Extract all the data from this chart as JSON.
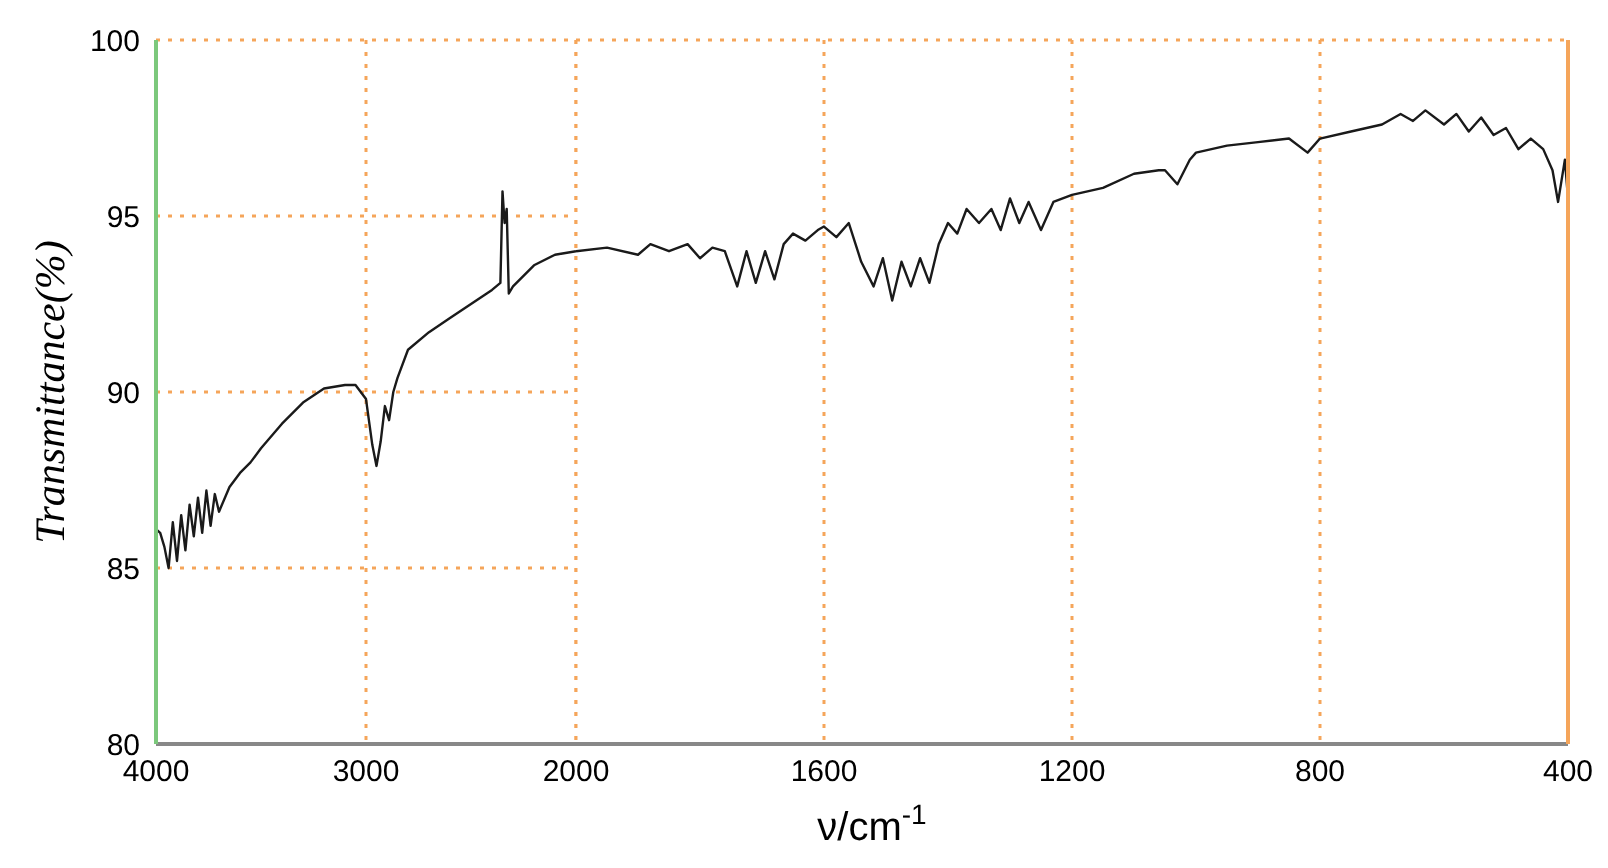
{
  "chart_data": [
    {
      "type": "line",
      "ylabel": "Transmittance(%)",
      "x": [
        4000,
        3980,
        3960,
        3940,
        3920,
        3900,
        3880,
        3860,
        3840,
        3820,
        3800,
        3780,
        3760,
        3740,
        3720,
        3700,
        3650,
        3600,
        3550,
        3500,
        3400,
        3300,
        3200,
        3100,
        3050,
        3000,
        2970,
        2950,
        2930,
        2910,
        2890,
        2870,
        2850,
        2800,
        2700,
        2600,
        2500,
        2400,
        2360,
        2350,
        2340,
        2330,
        2320,
        2300,
        2200,
        2100,
        2000
      ],
      "series": [
        {
          "color": "#1a1a1a",
          "values": [
            86.1,
            86.0,
            85.6,
            85.0,
            86.3,
            85.2,
            86.5,
            85.5,
            86.8,
            85.9,
            87.0,
            86.0,
            87.2,
            86.2,
            87.1,
            86.6,
            87.3,
            87.7,
            88.0,
            88.4,
            89.1,
            89.7,
            90.1,
            90.2,
            90.2,
            89.8,
            88.5,
            87.9,
            88.6,
            89.6,
            89.2,
            90.0,
            90.4,
            91.2,
            91.7,
            92.1,
            92.5,
            92.9,
            93.1,
            95.7,
            94.8,
            95.2,
            92.8,
            93.0,
            93.6,
            93.9,
            94.0
          ]
        }
      ],
      "xlim": [
        4000,
        2000
      ],
      "xticks": [
        4000,
        3000
      ],
      "ylim": [
        80,
        100
      ],
      "yticks": [
        80,
        85,
        90,
        95,
        100
      ],
      "grid": true,
      "marker": "none",
      "line_style": "solid"
    },
    {
      "type": "line",
      "xlabel": "ν/cm$^{-1}$",
      "x": [
        2000,
        1950,
        1900,
        1880,
        1850,
        1820,
        1800,
        1780,
        1760,
        1740,
        1725,
        1710,
        1695,
        1680,
        1665,
        1650,
        1630,
        1610,
        1600,
        1580,
        1560,
        1540,
        1520,
        1505,
        1490,
        1475,
        1460,
        1445,
        1430,
        1415,
        1400,
        1385,
        1370,
        1350,
        1330,
        1315,
        1300,
        1285,
        1270,
        1250,
        1230,
        1200,
        1150,
        1100,
        1060,
        1050,
        1030,
        1010,
        1000,
        950,
        900,
        850,
        820,
        800,
        750,
        700,
        670,
        650,
        630,
        600,
        580,
        560,
        540,
        520,
        500,
        480,
        460,
        440,
        425,
        416,
        405,
        400
      ],
      "series": [
        {
          "color": "#1a1a1a",
          "values": [
            94.0,
            94.1,
            93.9,
            94.2,
            94.0,
            94.2,
            93.8,
            94.1,
            94.0,
            93.0,
            94.0,
            93.1,
            94.0,
            93.2,
            94.2,
            94.5,
            94.3,
            94.6,
            94.7,
            94.4,
            94.8,
            93.7,
            93.0,
            93.8,
            92.6,
            93.7,
            93.0,
            93.8,
            93.1,
            94.2,
            94.8,
            94.5,
            95.2,
            94.8,
            95.2,
            94.6,
            95.5,
            94.8,
            95.4,
            94.6,
            95.4,
            95.6,
            95.8,
            96.2,
            96.3,
            96.3,
            95.9,
            96.6,
            96.8,
            97.0,
            97.1,
            97.2,
            96.8,
            97.2,
            97.4,
            97.6,
            97.9,
            97.7,
            98.0,
            97.6,
            97.9,
            97.4,
            97.8,
            97.3,
            97.5,
            96.9,
            97.2,
            96.9,
            96.3,
            95.4,
            96.6,
            95.5
          ]
        }
      ],
      "xlim": [
        2000,
        400
      ],
      "xticks": [
        2000,
        1600,
        1200,
        800,
        400
      ],
      "ylim": [
        80,
        100
      ],
      "yticks": [
        80,
        85,
        90,
        95,
        100
      ],
      "tick_labels": "x",
      "grid": true,
      "marker": "none",
      "line_style": "solid"
    }
  ]
}
